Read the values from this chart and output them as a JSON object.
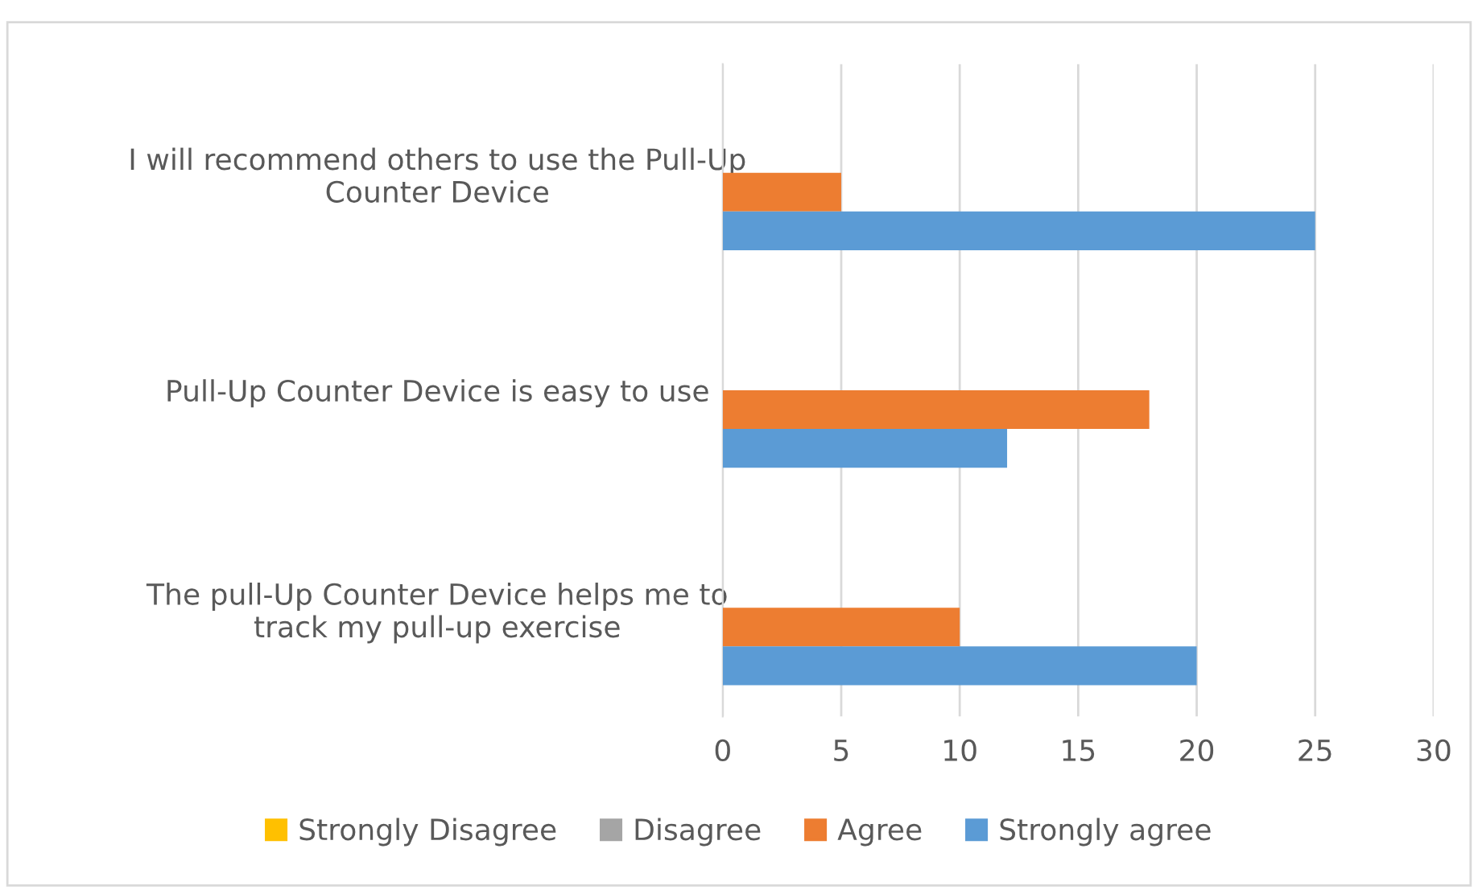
{
  "chart_data": {
    "type": "bar",
    "orientation": "horizontal",
    "categories": [
      "I will recommend others to use the Pull-Up\nCounter Device",
      "Pull-Up Counter Device is easy to use",
      "The pull-Up Counter Device helps me to\ntrack my pull-up exercise"
    ],
    "series": [
      {
        "name": "Strongly Disagree",
        "color": "#ffc000",
        "values": [
          0,
          0,
          0
        ]
      },
      {
        "name": "Disagree",
        "color": "#a5a5a5",
        "values": [
          0,
          0,
          0
        ]
      },
      {
        "name": "Agree",
        "color": "#ed7d31",
        "values": [
          5,
          18,
          10
        ]
      },
      {
        "name": "Strongly agree",
        "color": "#5b9bd5",
        "values": [
          25,
          12,
          20
        ]
      }
    ],
    "xlim": [
      0,
      30
    ],
    "xticks": [
      0,
      5,
      10,
      15,
      20,
      25,
      30
    ],
    "grid": "x",
    "legend": "bottom"
  }
}
